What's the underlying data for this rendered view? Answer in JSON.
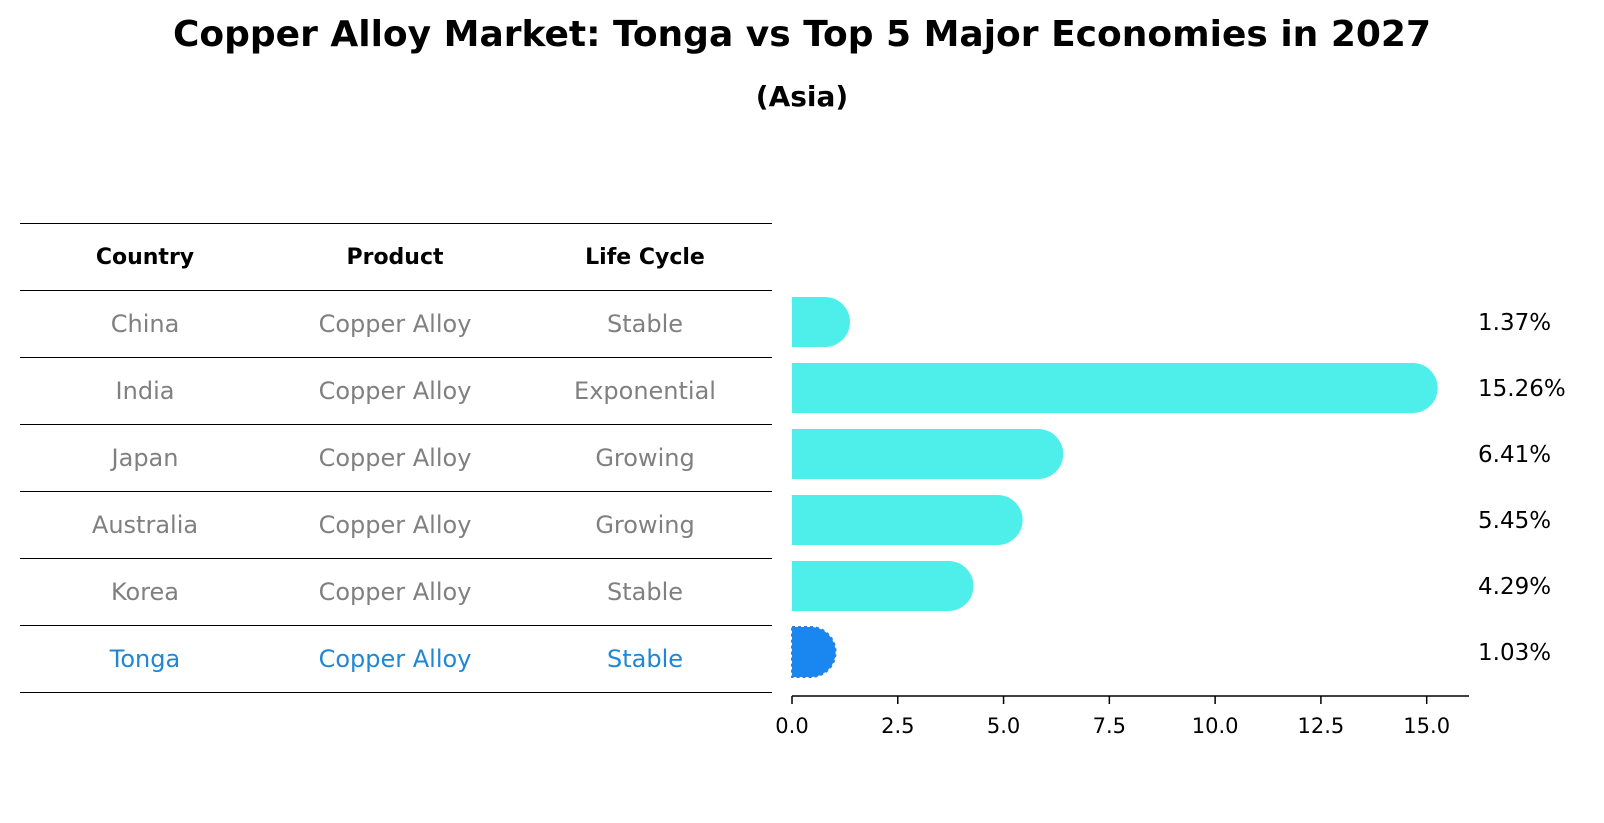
{
  "chart_data": {
    "type": "bar",
    "orientation": "horizontal",
    "title": "Copper Alloy Market: Tonga vs Top 5 Major Economies in 2027",
    "subtitle": "(Asia)",
    "table": {
      "headers": [
        "Country",
        "Product",
        "Life Cycle"
      ],
      "rows": [
        {
          "country": "China",
          "product": "Copper Alloy",
          "life_cycle": "Stable"
        },
        {
          "country": "India",
          "product": "Copper Alloy",
          "life_cycle": "Exponential"
        },
        {
          "country": "Japan",
          "product": "Copper Alloy",
          "life_cycle": "Growing"
        },
        {
          "country": "Australia",
          "product": "Copper Alloy",
          "life_cycle": "Growing"
        },
        {
          "country": "Korea",
          "product": "Copper Alloy",
          "life_cycle": "Stable"
        },
        {
          "country": "Tonga",
          "product": "Copper Alloy",
          "life_cycle": "Stable"
        }
      ]
    },
    "categories": [
      "China",
      "India",
      "Japan",
      "Australia",
      "Korea",
      "Tonga"
    ],
    "values": [
      1.37,
      15.26,
      6.41,
      5.45,
      4.29,
      1.03
    ],
    "value_labels": [
      "1.37%",
      "15.26%",
      "6.41%",
      "5.45%",
      "4.29%",
      "1.03%"
    ],
    "highlight": "Tonga",
    "xlim": [
      0,
      16
    ],
    "xticks": [
      0.0,
      2.5,
      5.0,
      7.5,
      10.0,
      12.5,
      15.0
    ],
    "xtick_labels": [
      "0.0",
      "2.5",
      "5.0",
      "7.5",
      "10.0",
      "12.5",
      "15.0"
    ],
    "colors": {
      "bar": "#4eeeea",
      "highlight_bar": "#1a86ef",
      "muted_text": "#808080",
      "highlight_text": "#1f87d6"
    }
  }
}
